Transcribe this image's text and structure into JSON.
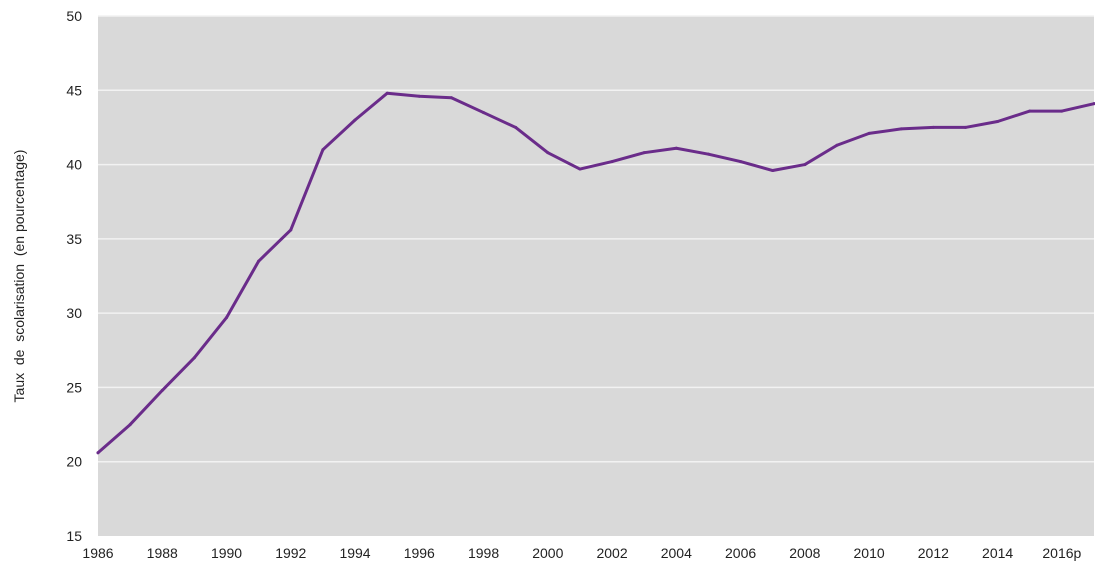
{
  "chart_data": {
    "type": "line",
    "title": "",
    "xlabel": "",
    "ylabel": "Taux  de  scolarisation  (en pourcentage)",
    "ylim": [
      15,
      50
    ],
    "yticks": [
      15,
      20,
      25,
      30,
      35,
      40,
      45,
      50
    ],
    "xlim": [
      1986,
      2017
    ],
    "x_tick_years": [
      1986,
      1988,
      1990,
      1992,
      1994,
      1996,
      1998,
      2000,
      2002,
      2004,
      2006,
      2008,
      2010,
      2012,
      2014,
      2016
    ],
    "x_tick_labels": [
      "1986",
      "1988",
      "1990",
      "1992",
      "1994",
      "1996",
      "1998",
      "2000",
      "2002",
      "2004",
      "2006",
      "2008",
      "2010",
      "2012",
      "2014",
      "2016p"
    ],
    "grid": true,
    "legend": "none",
    "colors": {
      "plot_background": "#d9d9d9",
      "gridline": "#f2f2f2",
      "line": "#6a2c8a"
    },
    "series": [
      {
        "x": [
          1986,
          1987,
          1988,
          1989,
          1990,
          1991,
          1992,
          1993,
          1994,
          1995,
          1996,
          1997,
          1998,
          1999,
          2000,
          2001,
          2002,
          2003,
          2004,
          2005,
          2006,
          2007,
          2008,
          2009,
          2010,
          2011,
          2012,
          2013,
          2014,
          2015,
          2016,
          2017
        ],
        "values": [
          20.6,
          22.5,
          24.8,
          27.0,
          29.7,
          33.5,
          35.6,
          41.0,
          43.0,
          44.8,
          44.6,
          44.5,
          43.5,
          42.5,
          40.8,
          39.7,
          40.2,
          40.8,
          41.1,
          40.7,
          40.2,
          39.6,
          40.0,
          41.3,
          42.1,
          42.4,
          42.5,
          42.5,
          42.9,
          43.6,
          43.6,
          44.1
        ]
      }
    ]
  }
}
